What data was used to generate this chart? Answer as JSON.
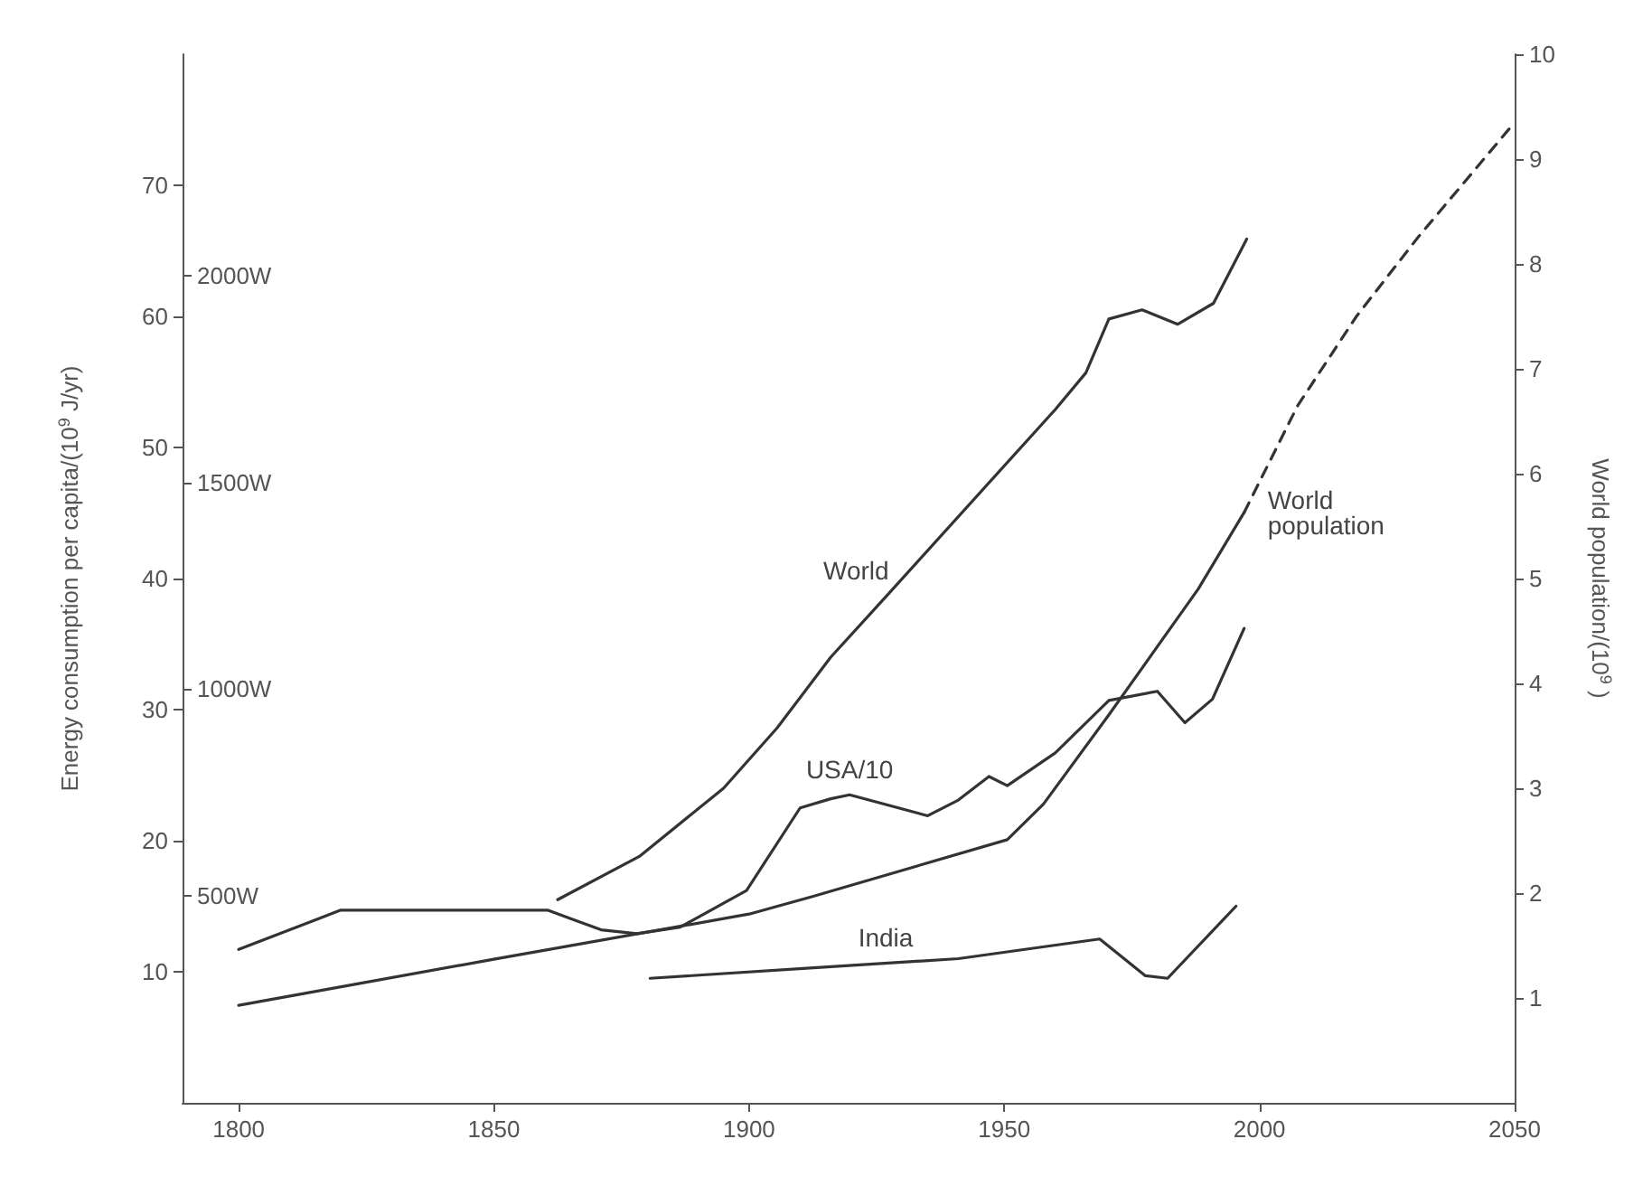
{
  "chart_data": {
    "type": "line",
    "xlabel": null,
    "ylabel": "Energy consumption per capita/(10$^{9}$ J/yr)",
    "y2label": "World population/(10$^{9}$ )",
    "xlim": [
      1789,
      2050
    ],
    "xticks": [
      1800,
      1850,
      1900,
      1950,
      2000,
      2050
    ],
    "ylim": [
      0,
      80
    ],
    "yticks": [
      10,
      20,
      30,
      40,
      50,
      60,
      70
    ],
    "y2lim": [
      0,
      10
    ],
    "y2ticks": [
      1,
      2,
      3,
      4,
      5,
      6,
      7,
      8,
      9,
      10
    ],
    "y3lim": [
      0,
      2535
    ],
    "y3ticks": [
      {
        "value": 500,
        "label": "500W"
      },
      {
        "value": 1000,
        "label": "1000W"
      },
      {
        "value": 1500,
        "label": "1500W"
      },
      {
        "value": 2000,
        "label": "2000W"
      }
    ],
    "grid": false,
    "legend": false,
    "marker": "none",
    "series": [
      {
        "name": "World",
        "color": "#333333",
        "x": [
          1862.5,
          1878.5,
          1895,
          1905.5,
          1916,
          1927,
          1960,
          1966,
          1970.5,
          1977,
          1984,
          1991,
          1997.5
        ],
        "values": [
          15.5,
          18.8,
          24,
          28.6,
          34,
          38.7,
          52.9,
          55.7,
          59.8,
          60.5,
          59.4,
          61,
          65.9
        ]
      },
      {
        "name": "USA/10",
        "color": "#333333",
        "x": [
          1800,
          1820,
          1860.5,
          1871,
          1878,
          1886.5,
          1899.5,
          1910,
          1916,
          1919.7,
          1935,
          1941,
          1947,
          1950.6,
          1960,
          1970.5,
          1980,
          1985.4,
          1990.8,
          1997
        ],
        "values": [
          11.7,
          14.7,
          14.7,
          13.2,
          12.9,
          13.4,
          16.2,
          22.5,
          23.2,
          23.5,
          21.9,
          23.1,
          24.9,
          24.2,
          26.7,
          30.7,
          31.4,
          29,
          30.8,
          36.2
        ]
      },
      {
        "name": "India",
        "color": "#333333",
        "x": [
          1880.6,
          1912.6,
          1941,
          1968.7,
          1977.6,
          1982,
          1995.4
        ],
        "values": [
          9.5,
          10.3,
          11,
          12.5,
          9.7,
          9.5,
          15
        ]
      },
      {
        "name": "World population",
        "color": "#333333",
        "axis": "y2",
        "x": [
          1800,
          1850,
          1900,
          1912.6,
          1950.6,
          1957.7,
          1970.5,
          1988,
          1997
        ],
        "values": [
          0.93,
          1.37,
          1.8,
          1.97,
          2.51,
          2.85,
          3.7,
          4.9,
          5.63
        ]
      },
      {
        "color": "#333333",
        "axis": "y2",
        "line_style": "dashed",
        "x": [
          1997,
          2007.5,
          2019,
          2031,
          2040.5,
          2050
        ],
        "values": [
          5.63,
          6.65,
          7.5,
          8.25,
          8.8,
          9.35
        ]
      }
    ]
  }
}
